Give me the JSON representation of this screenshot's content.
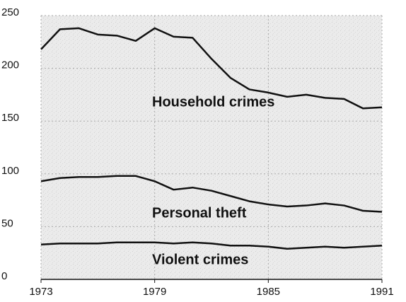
{
  "chart_data": {
    "type": "line",
    "x": [
      1973,
      1974,
      1975,
      1976,
      1977,
      1978,
      1979,
      1980,
      1981,
      1982,
      1983,
      1984,
      1985,
      1986,
      1987,
      1988,
      1989,
      1990,
      1991
    ],
    "series": [
      {
        "name": "Household crimes",
        "color": "#111111",
        "values": [
          218,
          237,
          238,
          232,
          231,
          226,
          238,
          230,
          229,
          209,
          191,
          180,
          177,
          173,
          175,
          172,
          171,
          162,
          163
        ]
      },
      {
        "name": "Personal theft",
        "color": "#111111",
        "values": [
          93,
          96,
          97,
          97,
          98,
          98,
          93,
          85,
          87,
          84,
          79,
          74,
          71,
          69,
          70,
          72,
          70,
          65,
          64
        ]
      },
      {
        "name": "Violent crimes",
        "color": "#111111",
        "values": [
          33,
          34,
          34,
          34,
          35,
          35,
          35,
          34,
          35,
          34,
          32,
          32,
          31,
          29,
          30,
          31,
          30,
          31,
          32
        ]
      }
    ],
    "xlim": [
      1973,
      1991
    ],
    "xticks": [
      1973,
      1979,
      1985,
      1991
    ],
    "ylim": [
      0,
      250
    ],
    "yticks": [
      0,
      50,
      100,
      150,
      200,
      250
    ],
    "grid": true
  }
}
